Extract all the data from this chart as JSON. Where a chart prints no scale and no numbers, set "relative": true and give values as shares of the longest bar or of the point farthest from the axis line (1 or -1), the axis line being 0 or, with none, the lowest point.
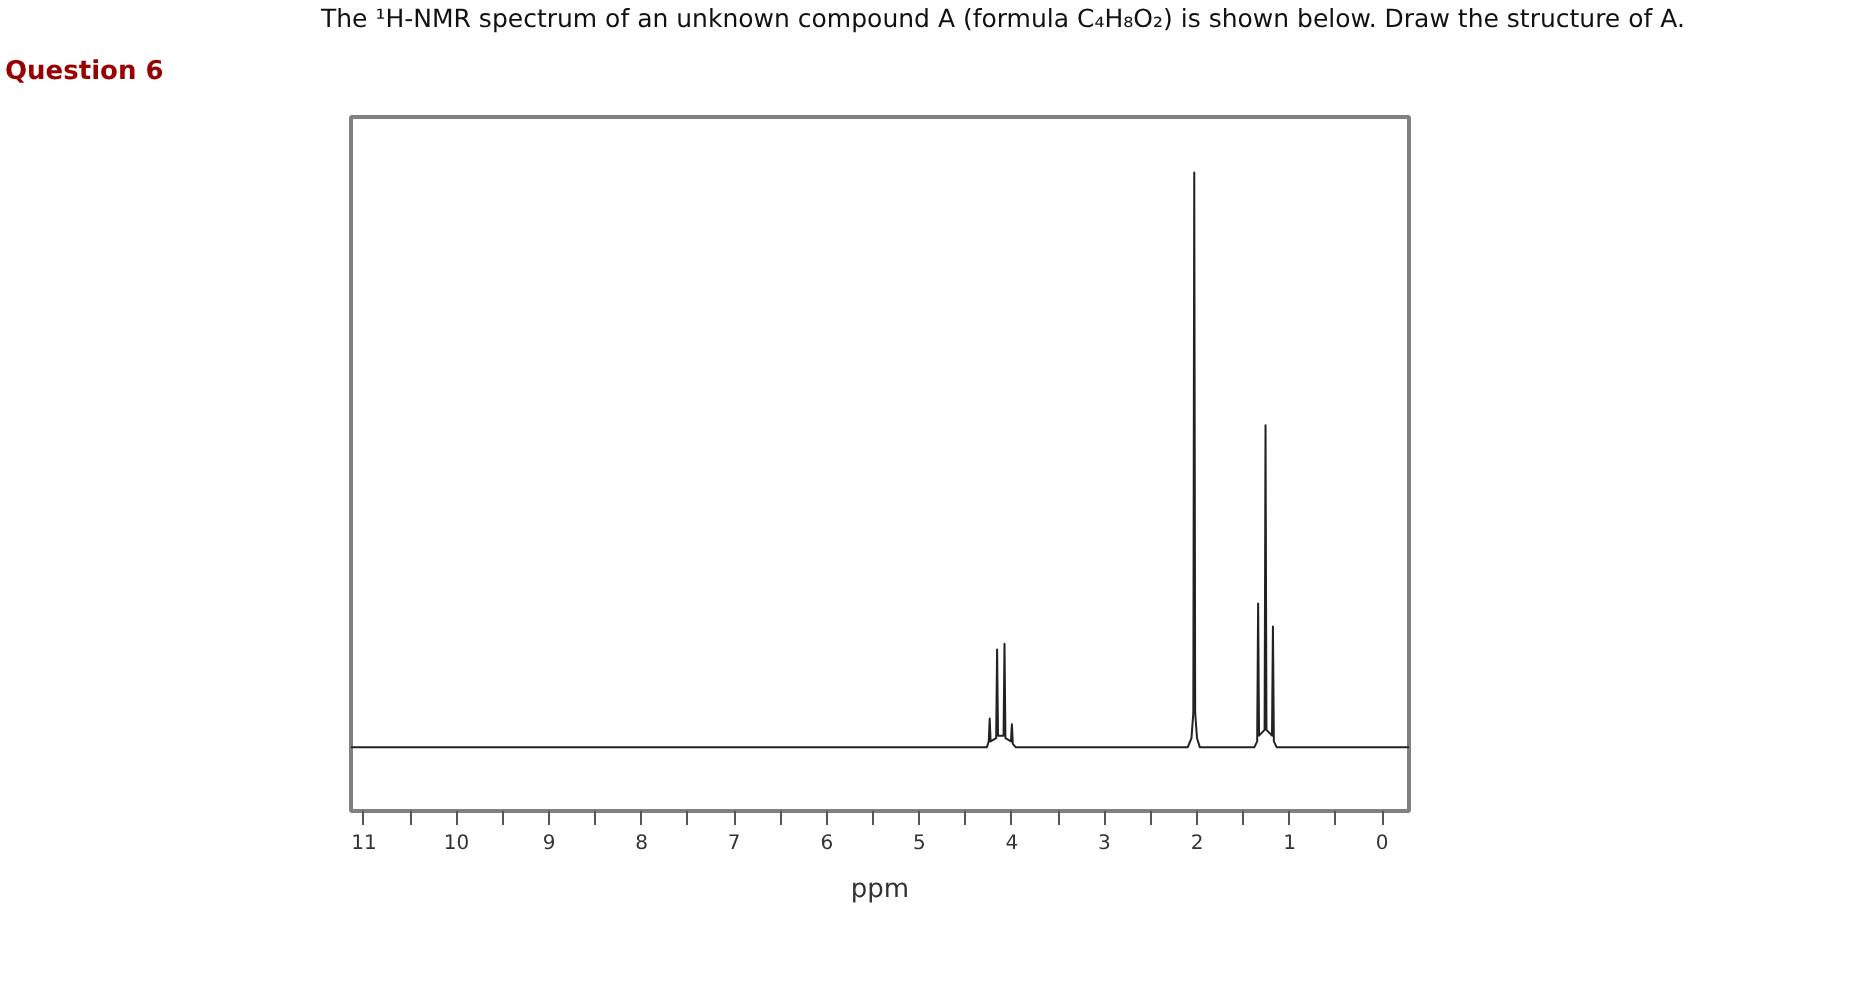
{
  "chart_data": {
    "type": "line",
    "title": "The ¹H-NMR spectrum of an unknown compound A (formula C₄H₈O₂) is shown below.  Draw the structure of A.",
    "annotations": [
      "Question 6"
    ],
    "xlabel": "ppm",
    "relative": true,
    "xlim": [
      11.14,
      -0.29
    ],
    "xticks": [
      11,
      {
        "value": 10.5,
        "label": null
      },
      10,
      {
        "value": 9.5,
        "label": null
      },
      9,
      {
        "value": 8.5,
        "label": null
      },
      8,
      {
        "value": 7.5,
        "label": null
      },
      7,
      {
        "value": 6.5,
        "label": null
      },
      6,
      {
        "value": 5.5,
        "label": null
      },
      5,
      {
        "value": 4.5,
        "label": null
      },
      4,
      {
        "value": 3.5,
        "label": null
      },
      3,
      {
        "value": 2.5,
        "label": null
      },
      2,
      {
        "value": 1.5,
        "label": null
      },
      1,
      {
        "value": 0.5,
        "label": null
      },
      0
    ],
    "grid": false,
    "series": [
      {
        "color": "#222222",
        "x": [
          11.14,
          4.27,
          4.25,
          4.24,
          4.23,
          4.17,
          4.16,
          4.15,
          4.09,
          4.08,
          4.07,
          4.01,
          4.0,
          3.99,
          3.96,
          2.1,
          2.06,
          2.04,
          2.03,
          2.02,
          2.0,
          1.97,
          1.38,
          1.35,
          1.34,
          1.33,
          1.27,
          1.26,
          1.25,
          1.19,
          1.18,
          1.17,
          1.14,
          -0.29
        ],
        "values": [
          0.1,
          0.1,
          0.109,
          0.145,
          0.109,
          0.114,
          0.253,
          0.118,
          0.118,
          0.262,
          0.114,
          0.109,
          0.136,
          0.105,
          0.1,
          0.1,
          0.114,
          0.154,
          1,
          0.154,
          0.114,
          0.1,
          0.1,
          0.109,
          0.325,
          0.118,
          0.127,
          0.604,
          0.127,
          0.118,
          0.289,
          0.109,
          0.1,
          0.1
        ]
      }
    ]
  }
}
